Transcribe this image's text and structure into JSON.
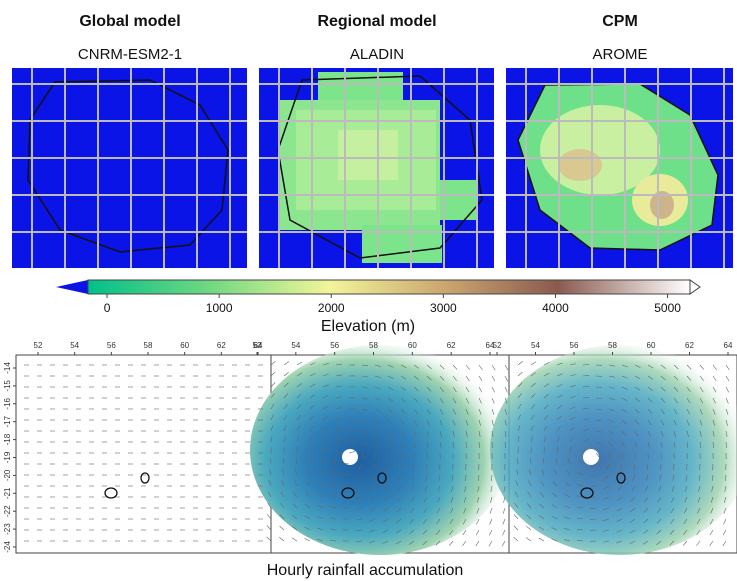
{
  "panels": [
    {
      "title": "Global model",
      "subtitle": "CNRM-ESM2-1"
    },
    {
      "title": "Regional model",
      "subtitle": "ALADIN"
    },
    {
      "title": "CPM",
      "subtitle": "AROME"
    }
  ],
  "colorbar": {
    "label": "Elevation (m)",
    "lim": [
      -170,
      5200
    ],
    "ticks": [
      0,
      1000,
      2000,
      3000,
      4000,
      5000
    ]
  },
  "rainfall_maps": {
    "lon_ticks": [
      52,
      54,
      56,
      58,
      60,
      62,
      64
    ],
    "lat_ticks": [
      -14,
      -15,
      -16,
      -17,
      -18,
      -19,
      -20,
      -21,
      -22,
      -23,
      -24
    ],
    "caption": "Hourly rainfall accumulation"
  }
}
